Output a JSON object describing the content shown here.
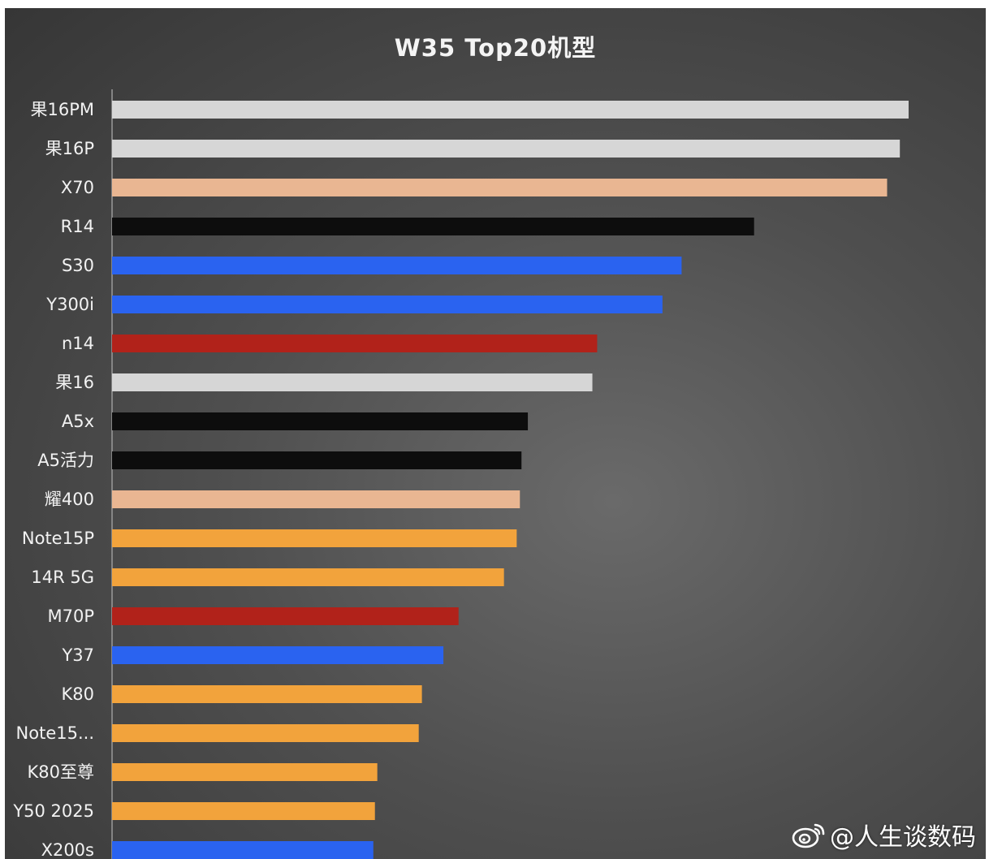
{
  "chart_data": {
    "type": "bar",
    "orientation": "horizontal",
    "title": "W35 Top20机型",
    "xlabel": "",
    "ylabel": "",
    "grid": false,
    "legend": "none",
    "categories": [
      "果16PM",
      "果16P",
      "X70",
      "R14",
      "S30",
      "Y300i",
      "n14",
      "果16",
      "A5x",
      "A5活力",
      "耀400",
      "Note15P",
      "14R 5G",
      "M70P",
      "Y37",
      "K80",
      "Note15...",
      "K80至尊",
      "Y50 2025",
      "X200s"
    ],
    "values": [
      100,
      98.9,
      97.3,
      80.6,
      71.5,
      69.1,
      60.9,
      60.3,
      52.2,
      51.4,
      51.2,
      50.8,
      49.2,
      43.5,
      41.6,
      38.9,
      38.5,
      33.3,
      33.0,
      32.8
    ],
    "colors": [
      "#d6d6d6",
      "#d6d6d6",
      "#e9b692",
      "#0d0d0d",
      "#2a63f0",
      "#2a63f0",
      "#b1221a",
      "#d6d6d6",
      "#0d0d0d",
      "#0d0d0d",
      "#e9b692",
      "#f2a33c",
      "#f2a33c",
      "#b1221a",
      "#2a63f0",
      "#f2a33c",
      "#f2a33c",
      "#f2a33c",
      "#f2a33c",
      "#2a63f0"
    ],
    "xlim": [
      0,
      100
    ]
  },
  "watermark": {
    "text": "@人生谈数码",
    "icon": "weibo-icon"
  }
}
